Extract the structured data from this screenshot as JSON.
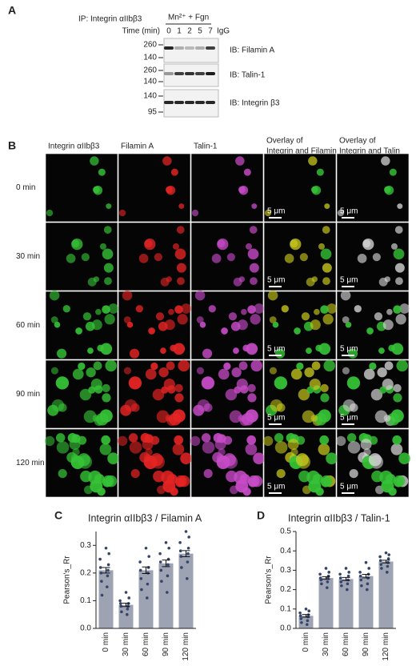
{
  "panel_a": {
    "label": "A",
    "ip": "IP: Integrin αIIbβ3",
    "treatment": "Mn²⁺ + Fgn",
    "time_label": "Time (min)",
    "lanes": [
      "0",
      "1",
      "2",
      "5",
      "7",
      "IgG"
    ],
    "blots": [
      {
        "markers": [
          "260",
          "140"
        ],
        "label": "IB: Filamin A"
      },
      {
        "markers": [
          "260",
          "140"
        ],
        "label": "IB: Talin-1"
      },
      {
        "markers": [
          "140",
          "95"
        ],
        "label": "IB: Integrin β3"
      }
    ]
  },
  "panel_b": {
    "label": "B",
    "columns": [
      [
        "Integrin αIIbβ3"
      ],
      [
        "Filamin A"
      ],
      [
        "Talin-1"
      ],
      [
        "Overlay of",
        "Integrin and Filamin"
      ],
      [
        "Overlay of",
        "Integrin and Talin"
      ]
    ],
    "rows": [
      "0 min",
      "30 min",
      "60 min",
      "90 min",
      "120 min"
    ],
    "scale_bar": "5 μm"
  },
  "chart_data": [
    {
      "type": "bar",
      "panel": "C",
      "title": "Integrin αIIbβ3 / Filamin A",
      "y_label": "Pearson's_Rr",
      "categories": [
        "0 min",
        "30 min",
        "60 min",
        "90 min",
        "120 min"
      ],
      "values": [
        0.21,
        0.085,
        0.21,
        0.235,
        0.27
      ],
      "errors": [
        0.01,
        0.006,
        0.012,
        0.012,
        0.011
      ],
      "points": [
        [
          0.29,
          0.27,
          0.25,
          0.23,
          0.22,
          0.21,
          0.2,
          0.19,
          0.17,
          0.15,
          0.12
        ],
        [
          0.13,
          0.11,
          0.1,
          0.09,
          0.09,
          0.08,
          0.08,
          0.07,
          0.06,
          0.05
        ],
        [
          0.29,
          0.26,
          0.24,
          0.22,
          0.21,
          0.2,
          0.18,
          0.16,
          0.14,
          0.11
        ],
        [
          0.31,
          0.29,
          0.27,
          0.25,
          0.24,
          0.23,
          0.21,
          0.19,
          0.17,
          0.13
        ],
        [
          0.35,
          0.33,
          0.31,
          0.29,
          0.28,
          0.27,
          0.26,
          0.24,
          0.22,
          0.18
        ]
      ],
      "color": "#9ea3b4",
      "point_color": "#35456a",
      "ylim": [
        0,
        0.35
      ],
      "yticks": [
        {
          "value": 0,
          "label": "0.0"
        },
        0.1,
        0.2,
        0.3
      ]
    },
    {
      "type": "bar",
      "panel": "D",
      "title": "Integrin αIIbβ3 / Talin-1",
      "y_label": "Pearson's_Rr",
      "categories": [
        "0 min",
        "30 min",
        "60 min",
        "90 min",
        "120 min"
      ],
      "values": [
        0.065,
        0.26,
        0.255,
        0.27,
        0.345
      ],
      "errors": [
        0.007,
        0.007,
        0.008,
        0.009,
        0.007
      ],
      "points": [
        [
          0.1,
          0.09,
          0.08,
          0.07,
          0.065,
          0.06,
          0.05,
          0.04,
          0.03,
          0.02
        ],
        [
          0.31,
          0.29,
          0.28,
          0.27,
          0.26,
          0.26,
          0.25,
          0.24,
          0.23,
          0.21
        ],
        [
          0.31,
          0.29,
          0.28,
          0.27,
          0.26,
          0.25,
          0.24,
          0.23,
          0.22,
          0.2
        ],
        [
          0.34,
          0.31,
          0.29,
          0.28,
          0.27,
          0.26,
          0.25,
          0.23,
          0.22,
          0.2
        ],
        [
          0.39,
          0.38,
          0.37,
          0.36,
          0.35,
          0.34,
          0.33,
          0.32,
          0.31,
          0.29
        ]
      ],
      "color": "#9ea3b4",
      "point_color": "#35456a",
      "ylim": [
        0,
        0.5
      ],
      "yticks": [
        {
          "value": 0,
          "label": "0.0"
        },
        0.1,
        0.2,
        0.3,
        0.4,
        0.5
      ]
    }
  ]
}
